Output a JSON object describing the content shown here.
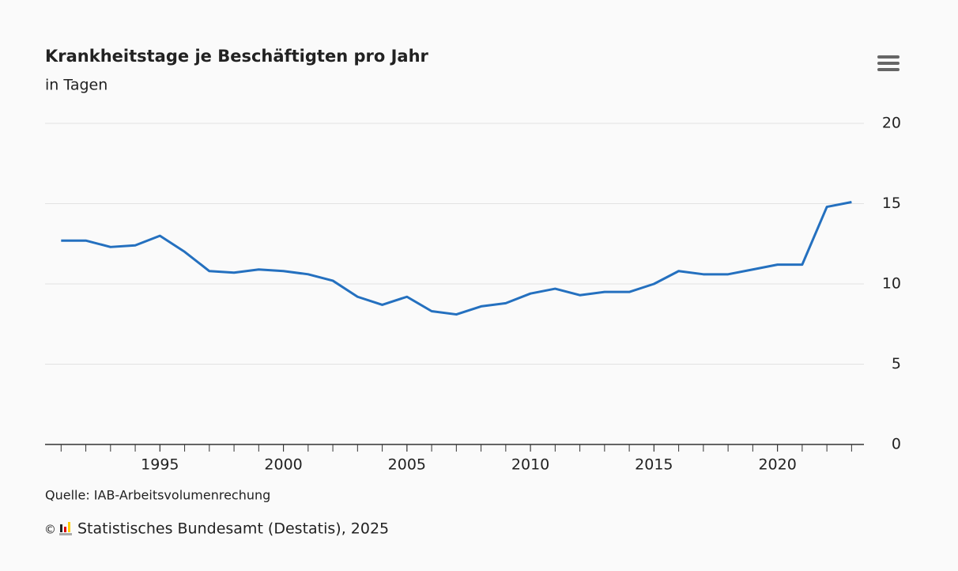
{
  "chart_data": {
    "type": "line",
    "title": "Krankheitstage je Beschäftigten pro Jahr",
    "subtitle": "in Tagen",
    "x": [
      1991,
      1992,
      1993,
      1994,
      1995,
      1996,
      1997,
      1998,
      1999,
      2000,
      2001,
      2002,
      2003,
      2004,
      2005,
      2006,
      2007,
      2008,
      2009,
      2010,
      2011,
      2012,
      2013,
      2014,
      2015,
      2016,
      2017,
      2018,
      2019,
      2020,
      2021,
      2022,
      2023
    ],
    "series": [
      {
        "name": "Krankheitstage",
        "color": "#2470bf",
        "values": [
          12.7,
          12.7,
          12.3,
          12.4,
          13.0,
          12.0,
          10.8,
          10.7,
          10.9,
          10.8,
          10.6,
          10.2,
          9.2,
          8.7,
          9.2,
          8.3,
          8.1,
          8.6,
          8.8,
          9.4,
          9.7,
          9.3,
          9.5,
          9.5,
          10.0,
          10.8,
          10.6,
          10.6,
          10.9,
          11.2,
          11.2,
          14.8,
          15.1
        ]
      }
    ],
    "xlim": [
      1990.35,
      2023.5
    ],
    "xticks": [
      1995,
      2000,
      2005,
      2010,
      2015,
      2020
    ],
    "ylim": [
      0,
      20
    ],
    "yticks": [
      0,
      5,
      10,
      15,
      20
    ],
    "grid": true,
    "source": "Quelle: IAB-Arbeitsvolumenrechung",
    "credits": "Statistisches Bundesamt (Destatis), 2025"
  }
}
